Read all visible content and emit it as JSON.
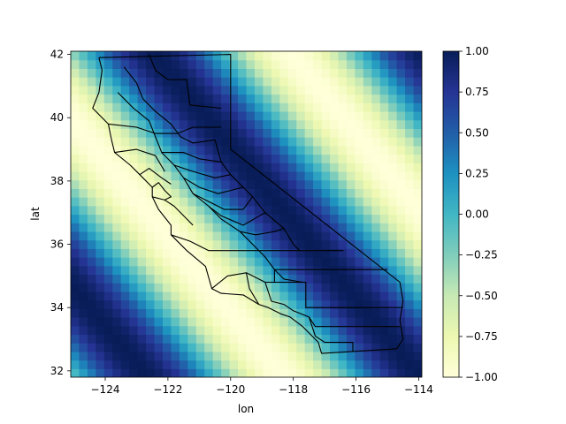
{
  "chart_data": {
    "type": "heatmap",
    "title": "",
    "xlabel": "lon",
    "ylabel": "lat",
    "xlim": [
      -125.1,
      -113.9
    ],
    "ylim": [
      31.8,
      42.1
    ],
    "x_ticks": [
      -124,
      -122,
      -120,
      -118,
      -116,
      -114
    ],
    "y_ticks": [
      32,
      34,
      36,
      38,
      40,
      42
    ],
    "x_tick_labels": [
      "−124",
      "−122",
      "−120",
      "−118",
      "−116",
      "−114"
    ],
    "y_tick_labels": [
      "32",
      "34",
      "36",
      "38",
      "40",
      "42"
    ],
    "grid": {
      "lon_start": -125.1,
      "lon_end": -113.9,
      "nx": 42,
      "lat_start": 31.8,
      "lat_end": 42.1,
      "ny": 38
    },
    "field": "cos(u*0.6), u = 1.2*(lon+119.5) + 1.0*(lat-38.5)",
    "colormap": "YlGnBu_r",
    "colormap_stops": [
      "#ffffd9",
      "#edf8b1",
      "#c7e9b4",
      "#7fcdbb",
      "#41b6c4",
      "#1d91c0",
      "#225ea8",
      "#253494",
      "#081d58"
    ],
    "colorbar": {
      "min": -1.0,
      "max": 1.0,
      "ticks": [
        "1.00",
        "0.75",
        "0.50",
        "0.25",
        "0.00",
        "−0.25",
        "−0.50",
        "−0.75",
        "−1.00"
      ],
      "tick_values": [
        1.0,
        0.75,
        0.5,
        0.25,
        0.0,
        -0.25,
        -0.5,
        -0.75,
        -1.0
      ]
    },
    "overlay": "California county boundaries"
  }
}
